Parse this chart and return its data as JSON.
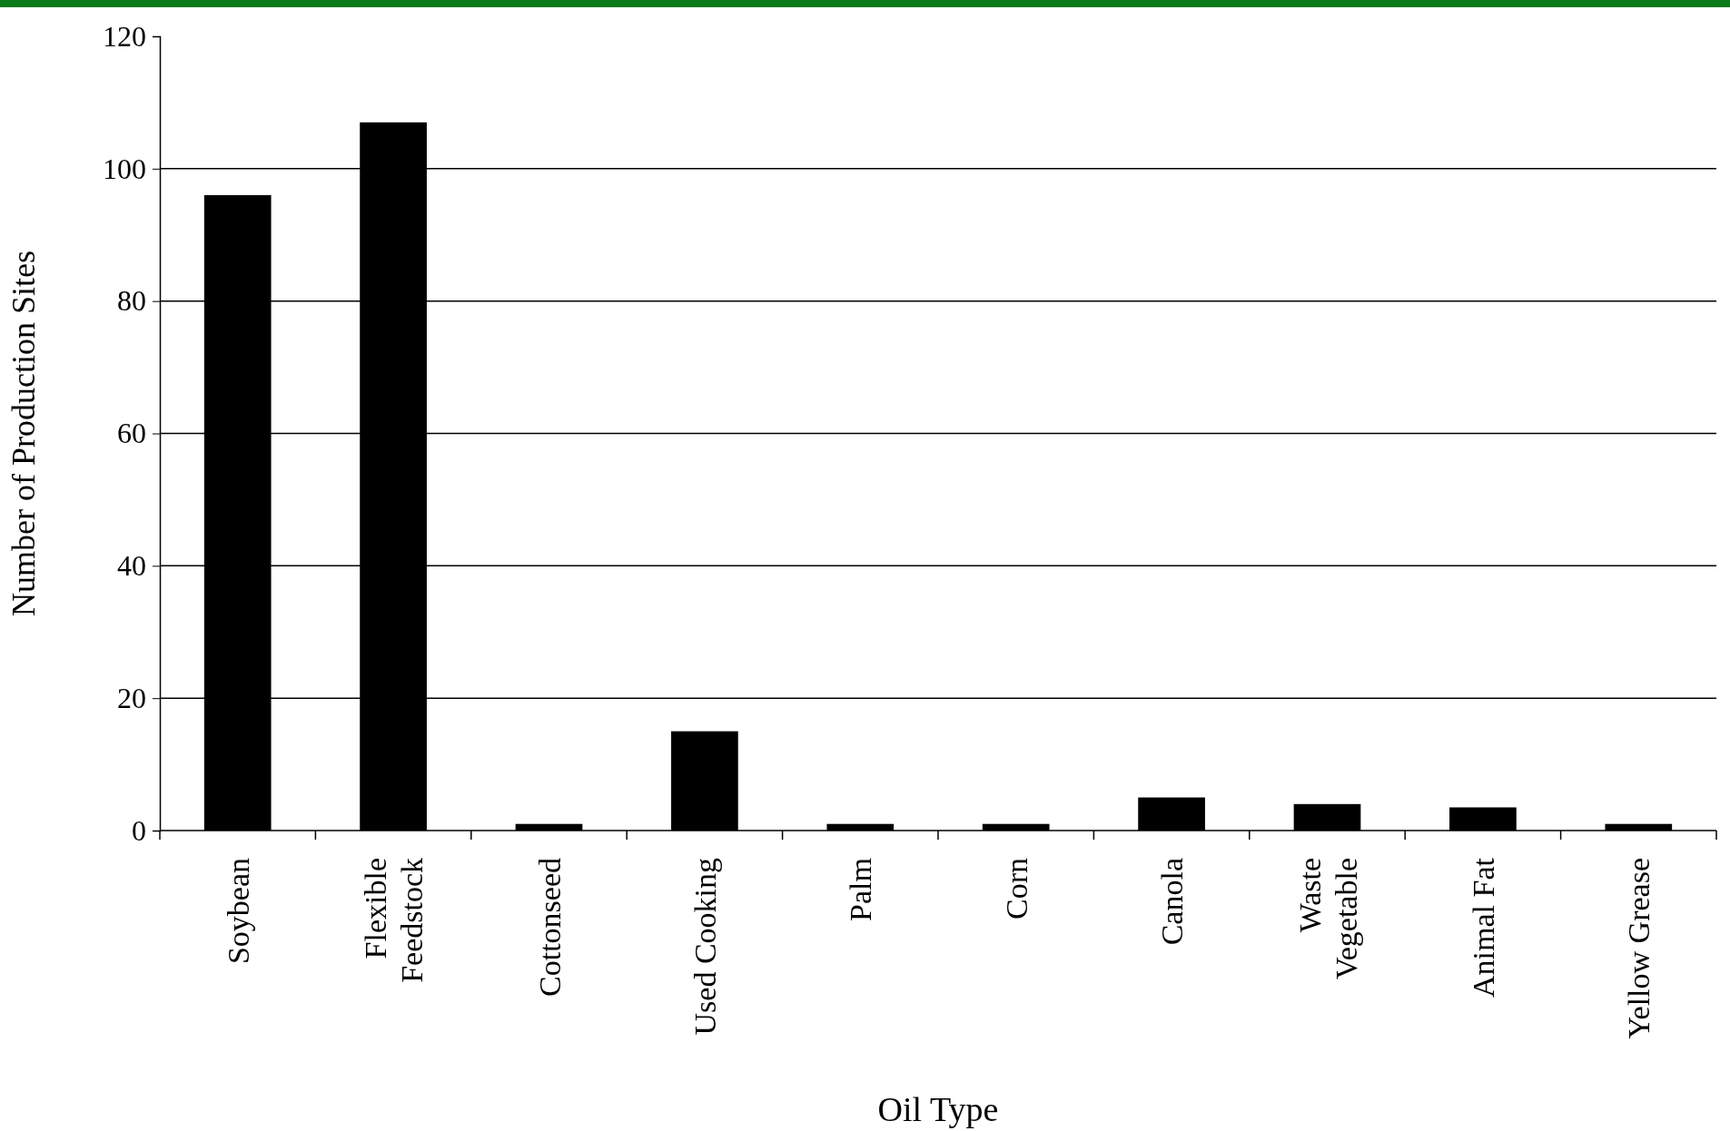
{
  "chart_data": {
    "type": "bar",
    "xlabel": "Oil Type",
    "ylabel": "Number of Production Sites",
    "categories": [
      "Soybean",
      "Flexible Feedstock",
      "Cottonseed",
      "Used Cooking",
      "Palm",
      "Corn",
      "Canola",
      "Waste Vegetable",
      "Animal Fat",
      "Yellow Grease"
    ],
    "values": [
      96,
      107,
      1,
      15,
      1,
      1,
      5,
      4,
      3.5,
      1
    ],
    "color": "#000000",
    "ylim": [
      0,
      120
    ],
    "yticks": [
      0,
      20,
      40,
      60,
      80,
      100,
      120
    ],
    "grid": "y"
  }
}
